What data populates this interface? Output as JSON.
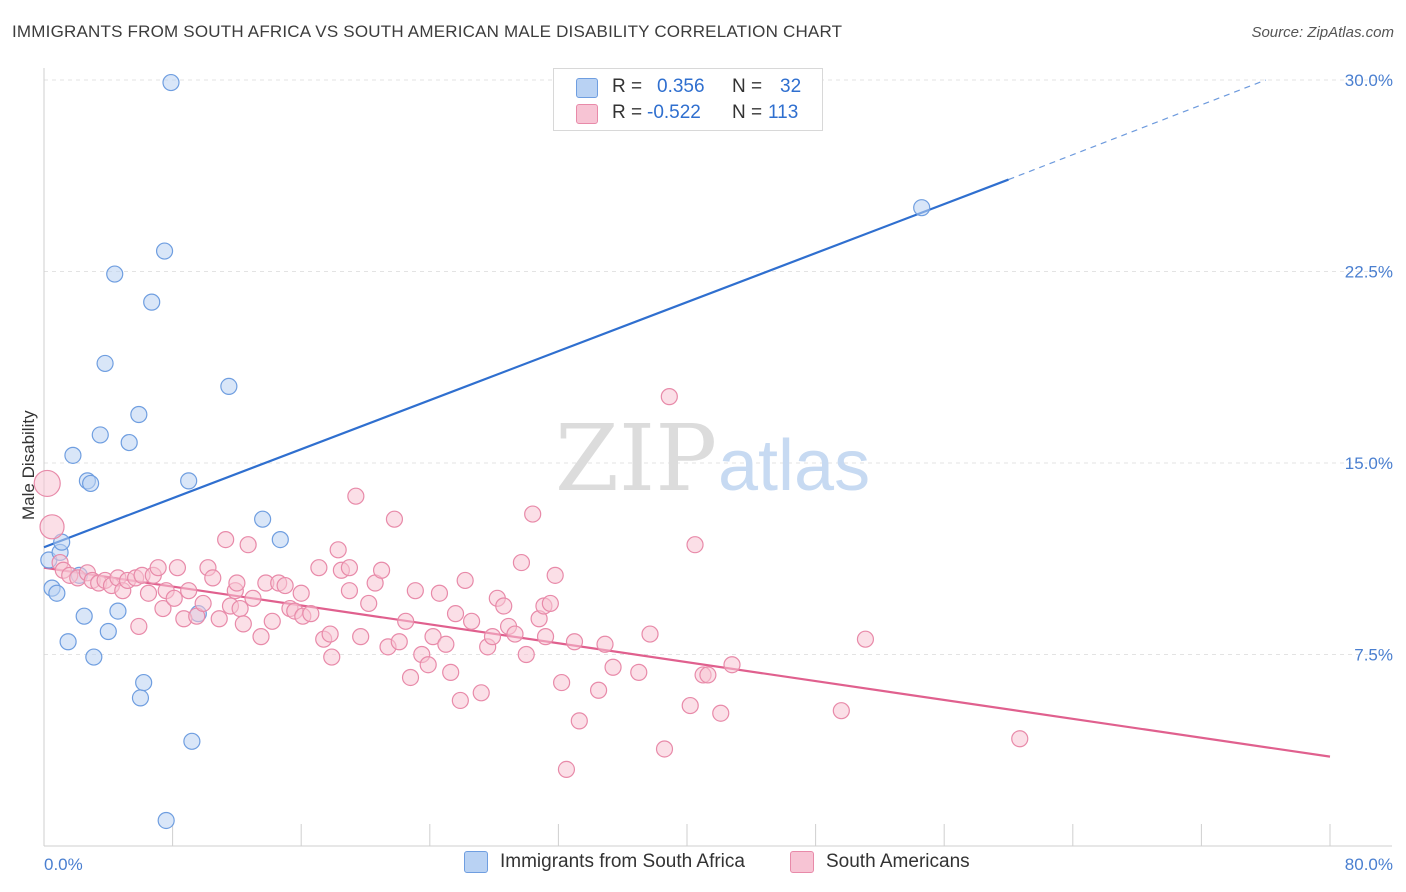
{
  "title": "IMMIGRANTS FROM SOUTH AFRICA VS SOUTH AMERICAN MALE DISABILITY CORRELATION CHART",
  "source": "Source: ZipAtlas.com",
  "watermark": {
    "zip": "ZIP",
    "atlas": "atlas"
  },
  "colors": {
    "blue_fill": "#b9d2f3",
    "blue_stroke": "#6f9ee0",
    "blue_line": "#2f6fcf",
    "pink_fill": "#f7c4d4",
    "pink_stroke": "#e88aa9",
    "pink_line": "#e0608e"
  },
  "legend": {
    "rows": [
      {
        "r_label": "R =",
        "r_value": "0.356",
        "n_label": "N =",
        "n_value": "32"
      },
      {
        "r_label": "R =",
        "r_value": "-0.522",
        "n_label": "N =",
        "n_value": "113"
      }
    ]
  },
  "bottom_legend": [
    "Immigrants from South Africa",
    "South Americans"
  ],
  "chart_data": {
    "type": "scatter",
    "ylabel": "Male Disability",
    "xlim": [
      0,
      80
    ],
    "ylim": [
      0,
      30
    ],
    "y_ticks": [
      7.5,
      15.0,
      22.5,
      30.0
    ],
    "y_tick_labels": [
      "7.5%",
      "15.0%",
      "22.5%",
      "30.0%"
    ],
    "x_tick_labels": [
      "0.0%",
      "80.0%"
    ],
    "grid": true,
    "series": [
      {
        "name": "Immigrants from South Africa",
        "points": [
          [
            0.3,
            11.2
          ],
          [
            0.5,
            10.1
          ],
          [
            0.8,
            9.9
          ],
          [
            1.0,
            11.5
          ],
          [
            1.1,
            11.9
          ],
          [
            1.5,
            8.0
          ],
          [
            1.8,
            15.3
          ],
          [
            2.2,
            10.6
          ],
          [
            2.5,
            9.0
          ],
          [
            2.7,
            14.3
          ],
          [
            2.9,
            14.2
          ],
          [
            3.1,
            7.4
          ],
          [
            3.5,
            16.1
          ],
          [
            3.8,
            18.9
          ],
          [
            4.0,
            8.4
          ],
          [
            4.4,
            22.4
          ],
          [
            4.6,
            9.2
          ],
          [
            5.3,
            15.8
          ],
          [
            5.9,
            16.9
          ],
          [
            6.0,
            5.8
          ],
          [
            6.2,
            6.4
          ],
          [
            6.7,
            21.3
          ],
          [
            7.5,
            23.3
          ],
          [
            7.6,
            1.0
          ],
          [
            7.9,
            29.9
          ],
          [
            9.0,
            14.3
          ],
          [
            9.2,
            4.1
          ],
          [
            9.6,
            9.1
          ],
          [
            11.5,
            18.0
          ],
          [
            13.6,
            12.8
          ],
          [
            14.7,
            12.0
          ],
          [
            54.6,
            25.0
          ]
        ],
        "trend": {
          "x": [
            0,
            60
          ],
          "y": [
            11.7,
            26.1
          ],
          "dashed_to": [
            76,
            30.0
          ]
        }
      },
      {
        "name": "South Americans",
        "points": [
          [
            0.2,
            14.2
          ],
          [
            0.5,
            12.5
          ],
          [
            1.0,
            11.1
          ],
          [
            1.2,
            10.8
          ],
          [
            1.6,
            10.6
          ],
          [
            2.1,
            10.5
          ],
          [
            2.7,
            10.7
          ],
          [
            3.0,
            10.4
          ],
          [
            3.4,
            10.3
          ],
          [
            3.8,
            10.4
          ],
          [
            4.2,
            10.2
          ],
          [
            4.6,
            10.5
          ],
          [
            4.9,
            10.0
          ],
          [
            5.2,
            10.4
          ],
          [
            5.7,
            10.5
          ],
          [
            5.9,
            8.6
          ],
          [
            6.1,
            10.6
          ],
          [
            6.5,
            9.9
          ],
          [
            6.8,
            10.6
          ],
          [
            7.1,
            10.9
          ],
          [
            7.4,
            9.3
          ],
          [
            7.6,
            10.0
          ],
          [
            8.1,
            9.7
          ],
          [
            8.3,
            10.9
          ],
          [
            8.7,
            8.9
          ],
          [
            9.0,
            10.0
          ],
          [
            9.5,
            9.0
          ],
          [
            9.9,
            9.5
          ],
          [
            10.2,
            10.9
          ],
          [
            10.5,
            10.5
          ],
          [
            10.9,
            8.9
          ],
          [
            11.3,
            12.0
          ],
          [
            11.6,
            9.4
          ],
          [
            11.9,
            10.0
          ],
          [
            12.2,
            9.3
          ],
          [
            12.4,
            8.7
          ],
          [
            12.7,
            11.8
          ],
          [
            13.0,
            9.7
          ],
          [
            13.5,
            8.2
          ],
          [
            13.8,
            10.3
          ],
          [
            14.2,
            8.8
          ],
          [
            14.6,
            10.3
          ],
          [
            15.0,
            10.2
          ],
          [
            15.3,
            9.3
          ],
          [
            15.6,
            9.2
          ],
          [
            16.1,
            9.0
          ],
          [
            16.6,
            9.1
          ],
          [
            17.1,
            10.9
          ],
          [
            17.4,
            8.1
          ],
          [
            17.8,
            8.3
          ],
          [
            17.9,
            7.4
          ],
          [
            18.3,
            11.6
          ],
          [
            18.5,
            10.8
          ],
          [
            19.0,
            10.0
          ],
          [
            19.4,
            13.7
          ],
          [
            19.7,
            8.2
          ],
          [
            20.2,
            9.5
          ],
          [
            20.6,
            10.3
          ],
          [
            21.0,
            10.8
          ],
          [
            21.4,
            7.8
          ],
          [
            21.8,
            12.8
          ],
          [
            22.1,
            8.0
          ],
          [
            22.5,
            8.8
          ],
          [
            22.8,
            6.6
          ],
          [
            23.1,
            10.0
          ],
          [
            23.5,
            7.5
          ],
          [
            23.9,
            7.1
          ],
          [
            24.2,
            8.2
          ],
          [
            24.6,
            9.9
          ],
          [
            25.0,
            7.9
          ],
          [
            25.3,
            6.8
          ],
          [
            25.6,
            9.1
          ],
          [
            25.9,
            5.7
          ],
          [
            26.2,
            10.4
          ],
          [
            26.6,
            8.8
          ],
          [
            27.2,
            6.0
          ],
          [
            27.6,
            7.8
          ],
          [
            27.9,
            8.2
          ],
          [
            28.2,
            9.7
          ],
          [
            28.6,
            9.4
          ],
          [
            28.9,
            8.6
          ],
          [
            29.3,
            8.3
          ],
          [
            29.7,
            11.1
          ],
          [
            30.0,
            7.5
          ],
          [
            30.4,
            13.0
          ],
          [
            30.8,
            8.9
          ],
          [
            31.1,
            9.4
          ],
          [
            31.5,
            9.5
          ],
          [
            31.8,
            10.6
          ],
          [
            32.2,
            6.4
          ],
          [
            32.5,
            3.0
          ],
          [
            33.0,
            8.0
          ],
          [
            33.3,
            4.9
          ],
          [
            34.5,
            6.1
          ],
          [
            34.9,
            7.9
          ],
          [
            35.4,
            7.0
          ],
          [
            37.7,
            8.3
          ],
          [
            37.0,
            6.8
          ],
          [
            38.6,
            3.8
          ],
          [
            38.9,
            17.6
          ],
          [
            40.2,
            5.5
          ],
          [
            40.5,
            11.8
          ],
          [
            41.0,
            6.7
          ],
          [
            41.3,
            6.7
          ],
          [
            42.1,
            5.2
          ],
          [
            42.8,
            7.1
          ],
          [
            49.6,
            5.3
          ],
          [
            51.1,
            8.1
          ],
          [
            60.7,
            4.2
          ],
          [
            31.2,
            8.2
          ],
          [
            16.0,
            9.9
          ],
          [
            19.0,
            10.9
          ],
          [
            12.0,
            10.3
          ]
        ],
        "trend": {
          "x": [
            0,
            80
          ],
          "y": [
            10.9,
            3.5
          ]
        }
      }
    ]
  }
}
